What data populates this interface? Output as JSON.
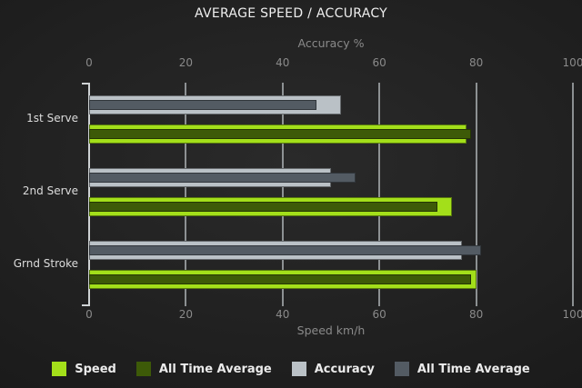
{
  "chart_data": {
    "type": "bar",
    "orientation": "horizontal",
    "title": "AVERAGE SPEED / ACCURACY",
    "categories": [
      "1st Serve",
      "2nd Serve",
      "Grnd Stroke"
    ],
    "series": [
      {
        "name": "Speed",
        "axis": "bottom",
        "layer": "outer",
        "color": "#a3df1a",
        "values": [
          78,
          75,
          80
        ]
      },
      {
        "name": "All Time Average",
        "axis": "bottom",
        "layer": "inner",
        "color": "#3d5a08",
        "values": [
          79,
          72,
          79
        ]
      },
      {
        "name": "Accuracy",
        "axis": "top",
        "layer": "outer",
        "color": "#bac1c6",
        "values": [
          52,
          50,
          77
        ]
      },
      {
        "name": "All Time Average",
        "axis": "top",
        "layer": "inner",
        "color": "#535b63",
        "values": [
          47,
          55,
          81
        ]
      }
    ],
    "top_axis": {
      "label": "Accuracy %",
      "ticks": [
        0,
        20,
        40,
        60,
        80,
        100
      ],
      "range": [
        0,
        100
      ]
    },
    "bottom_axis": {
      "label": "Speed km/h",
      "ticks": [
        0,
        20,
        40,
        60,
        80,
        100
      ],
      "range": [
        0,
        100
      ]
    },
    "legend": {
      "position": "bottom",
      "entries": [
        "Speed",
        "All Time Average",
        "Accuracy",
        "All Time Average"
      ]
    },
    "grid": true
  }
}
